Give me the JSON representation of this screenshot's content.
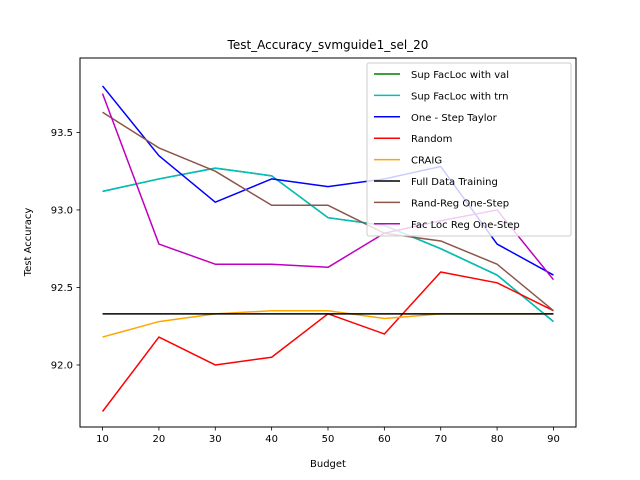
{
  "chart_data": {
    "type": "line",
    "title": "Test_Accuracy_svmguide1_sel_20",
    "xlabel": "Budget",
    "ylabel": "Test Accuracy",
    "x": [
      10,
      20,
      30,
      40,
      50,
      60,
      70,
      80,
      90
    ],
    "xticks": [
      "10",
      "20",
      "30",
      "40",
      "50",
      "60",
      "70",
      "80",
      "90"
    ],
    "yticks": [
      "92.0",
      "92.5",
      "93.0",
      "93.5"
    ],
    "xlim": [
      6,
      94
    ],
    "ylim": [
      91.6,
      93.98
    ],
    "grid": false,
    "legend_position": "top-right",
    "series": [
      {
        "name": "Sup FacLoc with val",
        "color": "#008000",
        "values": [
          93.12,
          93.2,
          93.27,
          93.22,
          92.95,
          92.9,
          92.75,
          92.58,
          92.28
        ]
      },
      {
        "name": "Sup FacLoc with trn",
        "color": "#00bfbf",
        "values": [
          93.12,
          93.2,
          93.27,
          93.22,
          92.95,
          92.9,
          92.75,
          92.58,
          92.28
        ]
      },
      {
        "name": "One - Step Taylor",
        "color": "#0000ff",
        "values": [
          93.8,
          93.35,
          93.05,
          93.2,
          93.15,
          93.2,
          93.28,
          92.78,
          92.58
        ]
      },
      {
        "name": "Random",
        "color": "#ff0000",
        "values": [
          91.7,
          92.18,
          92.0,
          92.05,
          92.33,
          92.2,
          92.6,
          92.53,
          92.35
        ]
      },
      {
        "name": "CRAIG",
        "color": "#ffa500",
        "values": [
          92.18,
          92.28,
          92.33,
          92.35,
          92.35,
          92.3,
          92.33,
          92.33,
          92.33
        ]
      },
      {
        "name": "Full Data Training",
        "color": "#000000",
        "values": [
          92.33,
          92.33,
          92.33,
          92.33,
          92.33,
          92.33,
          92.33,
          92.33,
          92.33
        ]
      },
      {
        "name": "Rand-Reg One-Step",
        "color": "#8c564b",
        "values": [
          93.63,
          93.4,
          93.25,
          93.03,
          93.03,
          92.85,
          92.8,
          92.65,
          92.35
        ]
      },
      {
        "name": "Fac Loc Reg One-Step",
        "color": "#bf00bf",
        "values": [
          93.75,
          92.78,
          92.65,
          92.65,
          92.63,
          92.85,
          92.93,
          93.0,
          92.55
        ]
      }
    ]
  }
}
